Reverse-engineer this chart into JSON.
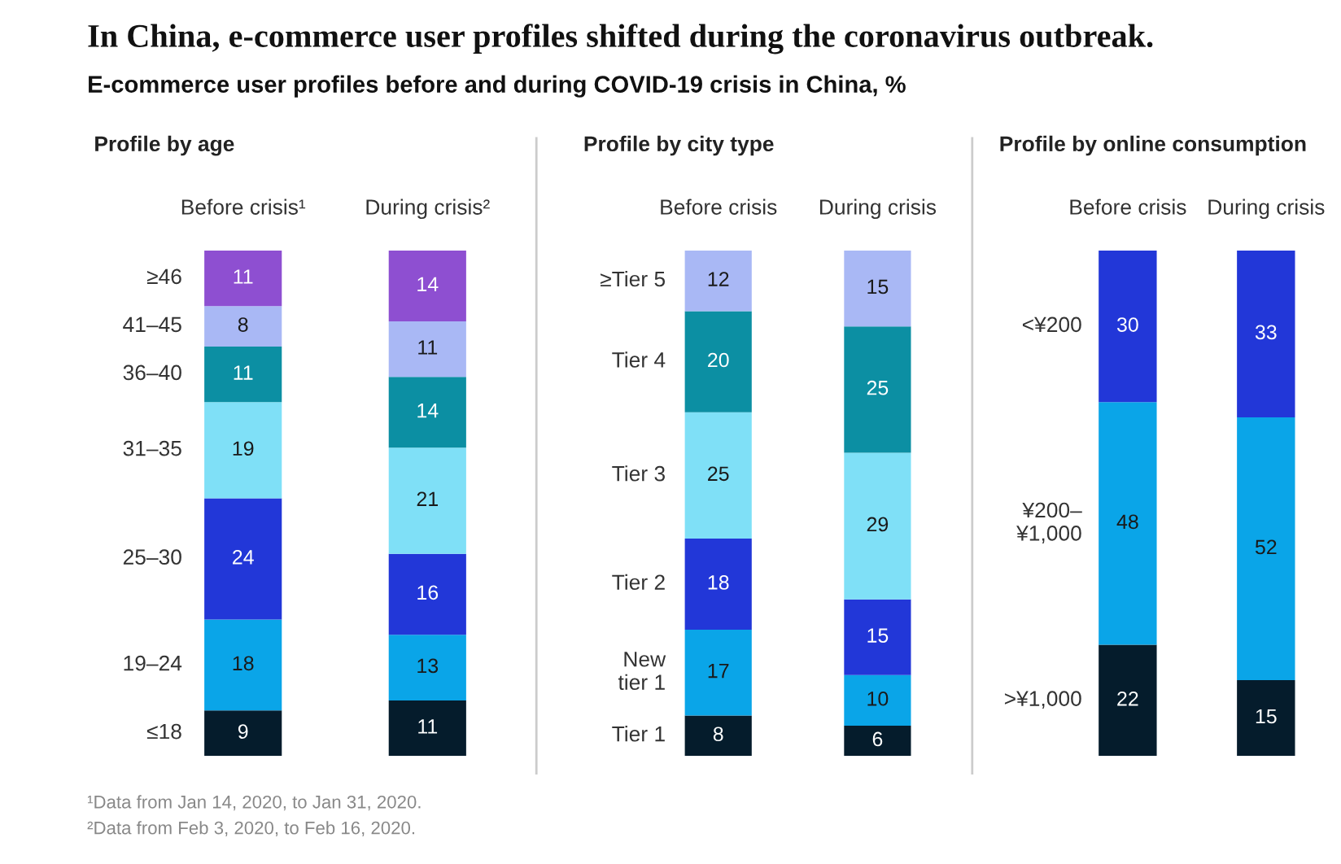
{
  "chart_data": [
    {
      "type": "bar",
      "stacked": true,
      "title": "Profile by age",
      "categories": [
        "Before crisis¹",
        "During crisis²"
      ],
      "data_labels": true,
      "legend": false,
      "grid": false,
      "annotations": [
        "In China, e-commerce user profiles shifted during the coronavirus outbreak.",
        "E-commerce user profiles before and during COVID-19 crisis in China, %",
        "¹Data from Jan 14, 2020, to Jan 31, 2020.",
        "²Data from Feb 3, 2020, to Feb 16, 2020."
      ],
      "series": [
        {
          "name": "≤18",
          "color": "#051c2c",
          "values": [
            9,
            11
          ]
        },
        {
          "name": "19–24",
          "color": "#0aa5e8",
          "values": [
            18,
            13
          ]
        },
        {
          "name": "25–30",
          "color": "#2237d8",
          "values": [
            24,
            16
          ]
        },
        {
          "name": "31–35",
          "color": "#7fe0f7",
          "values": [
            19,
            21
          ]
        },
        {
          "name": "36–40",
          "color": "#0c8fa3",
          "values": [
            11,
            14
          ]
        },
        {
          "name": "41–45",
          "color": "#a9b8f5",
          "values": [
            8,
            11
          ]
        },
        {
          "name": "≥46",
          "color": "#8e4fd1",
          "values": [
            11,
            14
          ]
        }
      ]
    },
    {
      "type": "bar",
      "stacked": true,
      "title": "Profile by city type",
      "categories": [
        "Before crisis",
        "During crisis"
      ],
      "data_labels": true,
      "legend": false,
      "grid": false,
      "series": [
        {
          "name": "Tier 1",
          "color": "#051c2c",
          "values": [
            8,
            6
          ]
        },
        {
          "name": "New\ntier 1",
          "color": "#0aa5e8",
          "values": [
            17,
            10
          ]
        },
        {
          "name": "Tier 2",
          "color": "#2237d8",
          "values": [
            18,
            15
          ]
        },
        {
          "name": "Tier 3",
          "color": "#7fe0f7",
          "values": [
            25,
            29
          ]
        },
        {
          "name": "Tier 4",
          "color": "#0c8fa3",
          "values": [
            20,
            25
          ]
        },
        {
          "name": "≥Tier 5",
          "color": "#a9b8f5",
          "values": [
            12,
            15
          ]
        }
      ]
    },
    {
      "type": "bar",
      "stacked": true,
      "title": "Profile by online consumption",
      "categories": [
        "Before crisis",
        "During crisis"
      ],
      "data_labels": true,
      "legend": false,
      "grid": false,
      "series": [
        {
          "name": ">¥1,000",
          "color": "#051c2c",
          "values": [
            22,
            15
          ]
        },
        {
          "name": "¥200–\n¥1,000",
          "color": "#0aa5e8",
          "values": [
            48,
            52
          ]
        },
        {
          "name": "<¥200",
          "color": "#2237d8",
          "values": [
            30,
            33
          ]
        }
      ]
    }
  ]
}
